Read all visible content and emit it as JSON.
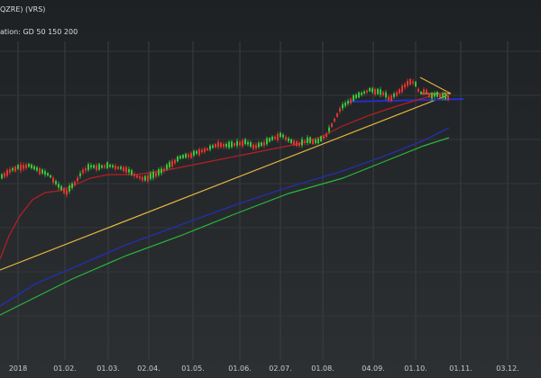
{
  "header": {
    "title": "QZRE) (VRS)",
    "subtitle": "ation: GD 50 150 200"
  },
  "chart_data": {
    "type": "candlestick",
    "title": "",
    "x_tick_labels": [
      "2018",
      "01.02.",
      "01.03.",
      "02.04.",
      "01.05.",
      "01.06.",
      "02.07.",
      "01.08.",
      "04.09.",
      "01.10.",
      "01.11.",
      "03.12."
    ],
    "grid": true,
    "colors": {
      "up": "#39c43a",
      "down": "#e3342f",
      "ma50": "#b81e24",
      "ma150": "#2230a8",
      "ma200": "#27b83a",
      "trend": "#e6b83d",
      "support": "#2230c8"
    },
    "moving_averages": [
      {
        "name": "GD 50",
        "color": "#b81e24"
      },
      {
        "name": "GD 150",
        "color": "#2230a8"
      },
      {
        "name": "GD 200",
        "color": "#27b83a"
      }
    ]
  }
}
